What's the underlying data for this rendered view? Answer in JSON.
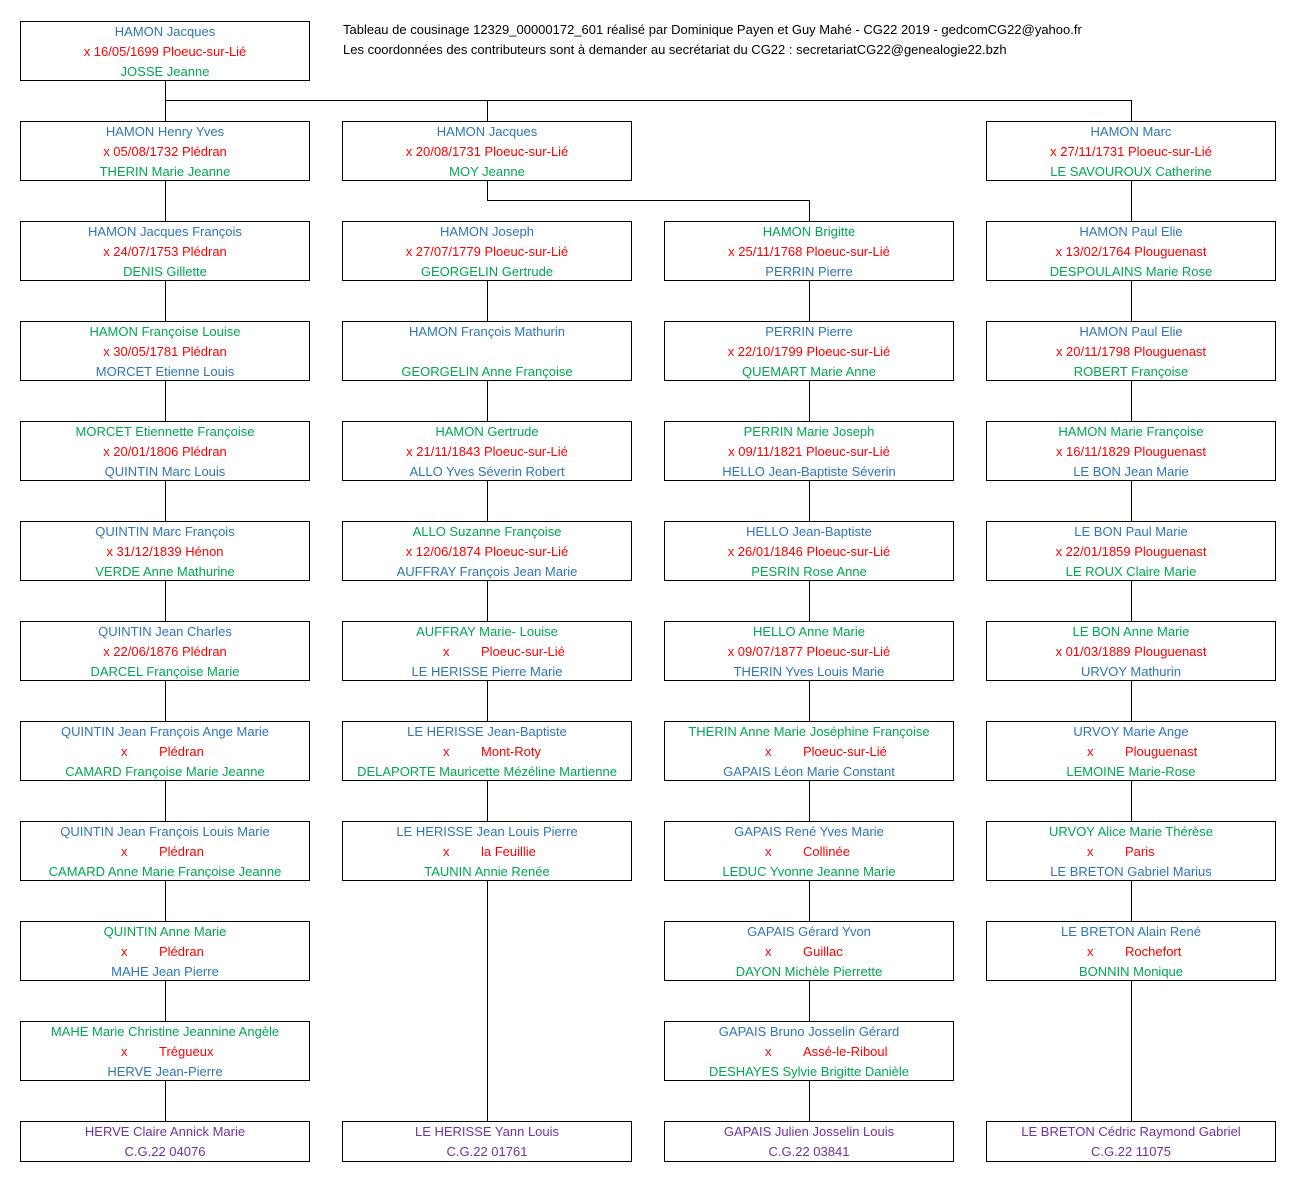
{
  "header": {
    "line1": "Tableau de cousinage 12329_00000172_601 réalisé par Dominique Payen et Guy Mahé - CG22 2019 - gedcomCG22@yahoo.fr",
    "line2": "Les coordonnées des contributeurs sont à demander au secrétariat du CG22 :  secretariatCG22@genealogie22.bzh"
  },
  "colors": {
    "blue": "#2e75b6",
    "green": "#00a651",
    "red": "#ff0000",
    "purple": "#7030a0"
  },
  "root": {
    "p1": "HAMON Jacques",
    "m": "x 16/05/1699 Ploeuc-sur-Lié",
    "p2": "JOSSE Jeanne",
    "c1": "blue",
    "c2": "green"
  },
  "columns": [
    {
      "gen1": {
        "p1": "HAMON Henry Yves",
        "m": "x 05/08/1732 Plédran",
        "p2": "THERIN Marie Jeanne",
        "c1": "blue",
        "c2": "green"
      },
      "rows": [
        {
          "p1": "HAMON Jacques François",
          "m": "x 24/07/1753 Plédran",
          "p2": "DENIS Gillette",
          "c1": "blue",
          "c2": "green"
        },
        {
          "p1": "HAMON Françoise Louise",
          "m": "x 30/05/1781 Plédran",
          "p2": "MORCET Etienne Louis",
          "c1": "green",
          "c2": "blue"
        },
        {
          "p1": "MORCET Etiennette Françoise",
          "m": "x 20/01/1806 Plédran",
          "p2": "QUINTIN Marc Louis",
          "c1": "green",
          "c2": "blue"
        },
        {
          "p1": "QUINTIN Marc François",
          "m": "x 31/12/1839 Hénon",
          "p2": "VERDE Anne Mathurine",
          "c1": "blue",
          "c2": "green"
        },
        {
          "p1": "QUINTIN Jean Charles",
          "m": "x 22/06/1876 Plédran",
          "p2": "DARCEL Françoise Marie",
          "c1": "blue",
          "c2": "green"
        },
        {
          "p1": "QUINTIN Jean François Ange Marie",
          "mx": "x",
          "mp": "Plédran",
          "p2": "CAMARD Françoise Marie Jeanne",
          "c1": "blue",
          "c2": "green"
        },
        {
          "p1": "QUINTIN Jean François Louis Marie",
          "mx": "x",
          "mp": "Plédran",
          "p2": "CAMARD Anne Marie Françoise Jeanne",
          "c1": "blue",
          "c2": "green"
        },
        {
          "p1": "QUINTIN Anne Marie",
          "mx": "x",
          "mp": "Plédran",
          "p2": "MAHE Jean Pierre",
          "c1": "green",
          "c2": "blue"
        },
        {
          "p1": "MAHE Marie Christine Jeannine Angèle",
          "mx": "x",
          "mp": "Trégueux",
          "p2": "HERVE Jean-Pierre",
          "c1": "green",
          "c2": "blue"
        }
      ],
      "final": {
        "name": "HERVE Claire Annick Marie",
        "code": "C.G.22 04076"
      }
    },
    {
      "gen1": {
        "p1": "HAMON Jacques",
        "m": "x 20/08/1731 Ploeuc-sur-Lié",
        "p2": "MOY Jeanne",
        "c1": "blue",
        "c2": "green"
      },
      "rows": [
        {
          "p1": "HAMON Joseph",
          "m": "x 27/07/1779 Ploeuc-sur-Lié",
          "p2": "GEORGELIN Gertrude",
          "c1": "blue",
          "c2": "green"
        },
        {
          "p1": "HAMON François Mathurin",
          "m": "",
          "p2": "GEORGELIN Anne Françoise",
          "c1": "blue",
          "c2": "green"
        },
        {
          "p1": "HAMON Gertrude",
          "m": "x 21/11/1843 Ploeuc-sur-Lié",
          "p2": "ALLO Yves Séverin Robert",
          "c1": "green",
          "c2": "blue"
        },
        {
          "p1": "ALLO Suzanne Françoise",
          "m": "x 12/06/1874 Ploeuc-sur-Lié",
          "p2": "AUFFRAY François Jean Marie",
          "c1": "green",
          "c2": "blue"
        },
        {
          "p1": "AUFFRAY Marie- Louise",
          "mx": "x",
          "mp": "Ploeuc-sur-Lié",
          "p2": "LE HERISSE Pierre Marie",
          "c1": "green",
          "c2": "blue"
        },
        {
          "p1": "LE HERISSE Jean-Baptiste",
          "mx": "x",
          "mp": "Mont-Roty",
          "p2": "DELAPORTE Mauricette Mézéline Martienne",
          "c1": "blue",
          "c2": "green"
        },
        {
          "p1": "LE HERISSE Jean Louis Pierre",
          "mx": "x",
          "mp": "la Feuillie",
          "p2": "TAUNIN Annie Renée",
          "c1": "blue",
          "c2": "green"
        }
      ],
      "final": {
        "name": "LE HERISSE Yann Louis",
        "code": "C.G.22 01761"
      }
    },
    {
      "rows": [
        {
          "p1": "HAMON Brigitte",
          "m": "x 25/11/1768 Ploeuc-sur-Lié",
          "p2": "PERRIN Pierre",
          "c1": "green",
          "c2": "blue"
        },
        {
          "p1": "PERRIN Pierre",
          "m": "x 22/10/1799 Ploeuc-sur-Lié",
          "p2": "QUEMART Marie Anne",
          "c1": "blue",
          "c2": "green"
        },
        {
          "p1": "PERRIN Marie Joseph",
          "m": "x 09/11/1821 Ploeuc-sur-Lié",
          "p2": "HELLO Jean-Baptiste Séverin",
          "c1": "green",
          "c2": "blue"
        },
        {
          "p1": "HELLO Jean-Baptiste",
          "m": "x 26/01/1846 Ploeuc-sur-Lié",
          "p2": "PESRIN Rose Anne",
          "c1": "blue",
          "c2": "green"
        },
        {
          "p1": "HELLO Anne Marie",
          "m": "x 09/07/1877 Ploeuc-sur-Lié",
          "p2": "THERIN Yves Louis Marie",
          "c1": "green",
          "c2": "blue"
        },
        {
          "p1": "THERIN Anne Marie Joséphine Françoise",
          "mx": "x",
          "mp": "Ploeuc-sur-Lié",
          "p2": "GAPAIS Léon Marie Constant",
          "c1": "green",
          "c2": "blue"
        },
        {
          "p1": "GAPAIS René Yves Marie",
          "mx": "x",
          "mp": "Collinée",
          "p2": "LEDUC Yvonne Jeanne Marie",
          "c1": "blue",
          "c2": "green"
        },
        {
          "p1": "GAPAIS Gérard Yvon",
          "mx": "x",
          "mp": "Guillac",
          "p2": "DAYON Michèle Pierrette",
          "c1": "blue",
          "c2": "green"
        },
        {
          "p1": "GAPAIS Bruno Josselin Gérard",
          "mx": "x",
          "mp": "Assé-le-Riboul",
          "p2": "DESHAYES Sylvie Brigitte Danièle",
          "c1": "blue",
          "c2": "green"
        }
      ],
      "final": {
        "name": "GAPAIS Julien Josselin Louis",
        "code": "C.G.22 03841"
      }
    },
    {
      "gen1": {
        "p1": "HAMON Marc",
        "m": "x 27/11/1731 Ploeuc-sur-Lié",
        "p2": "LE SAVOUROUX Catherine",
        "c1": "blue",
        "c2": "green"
      },
      "rows": [
        {
          "p1": "HAMON Paul Elie",
          "m": "x 13/02/1764 Plouguenast",
          "p2": "DESPOULAINS Marie Rose",
          "c1": "blue",
          "c2": "green"
        },
        {
          "p1": "HAMON Paul Elie",
          "m": "x 20/11/1798 Plouguenast",
          "p2": "ROBERT Françoise",
          "c1": "blue",
          "c2": "green"
        },
        {
          "p1": "HAMON Marie Françoise",
          "m": "x 16/11/1829 Plouguenast",
          "p2": "LE BON Jean Marie",
          "c1": "green",
          "c2": "blue"
        },
        {
          "p1": "LE BON Paul Marie",
          "m": "x 22/01/1859 Plouguenast",
          "p2": "LE ROUX Claire Marie",
          "c1": "blue",
          "c2": "green"
        },
        {
          "p1": "LE BON Anne Marie",
          "m": "x 01/03/1889 Plouguenast",
          "p2": "URVOY Mathurin",
          "c1": "green",
          "c2": "blue"
        },
        {
          "p1": "URVOY Marie Ange",
          "mx": "x",
          "mp": "Plouguenast",
          "p2": "LEMOINE Marie-Rose",
          "c1": "blue",
          "c2": "green"
        },
        {
          "p1": "URVOY Alice Marie Thérèse",
          "mx": "x",
          "mp": "Paris",
          "p2": "LE BRETON Gabriel Marius",
          "c1": "green",
          "c2": "blue"
        },
        {
          "p1": "LE BRETON Alain René",
          "mx": "x",
          "mp": "Rochefort",
          "p2": "BONNIN Monique",
          "c1": "blue",
          "c2": "green"
        }
      ],
      "final": {
        "name": "LE BRETON Cédric Raymond Gabriel",
        "code": "C.G.22 11075"
      }
    }
  ]
}
